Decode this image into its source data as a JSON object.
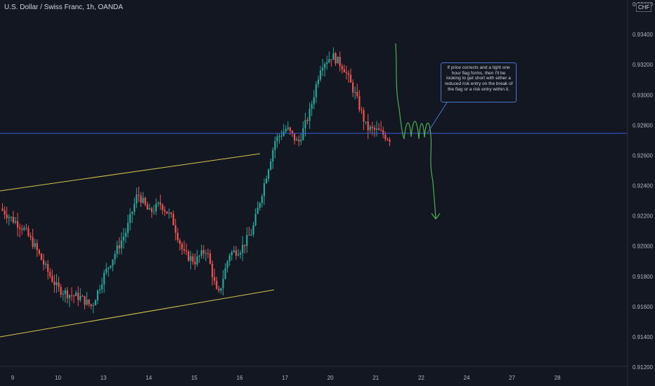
{
  "header": {
    "symbol_title": "U.S. Dollar / Swiss Franc, 1h, OANDA",
    "currency_badge": "CHF"
  },
  "annotation": {
    "text": "If price corrects and a tight one hour flag forms, then I'll be looking to get short with either a reduced risk entry on the break of the flag or a risk entry within it."
  },
  "colors": {
    "background": "#131722",
    "up": "#26a69a",
    "down": "#ef5350",
    "channel": "#d5c74a",
    "level": "#3b5bdb",
    "projection": "#4caf50",
    "note_border": "#4a74c9"
  },
  "chart_data": {
    "type": "candlestick",
    "title": "U.S. Dollar / Swiss Franc, 1h, OANDA",
    "ylim": [
      0.912,
      0.936
    ],
    "yticks": [
      "0.93600",
      "0.93400",
      "0.93200",
      "0.93000",
      "0.92800",
      "0.92600",
      "0.92400",
      "0.92200",
      "0.92000",
      "0.91800",
      "0.91600",
      "0.91400",
      "0.91200"
    ],
    "xticks": [
      "9",
      "10",
      "13",
      "14",
      "15",
      "16",
      "17",
      "20",
      "21",
      "22",
      "24",
      "27",
      "28"
    ],
    "horizontal_level": 0.9275,
    "close_path": [
      [
        "9",
        0.9225
      ],
      [
        "9",
        0.9218
      ],
      [
        "9",
        0.9212
      ],
      [
        "9",
        0.92
      ],
      [
        "9",
        0.9185
      ],
      [
        "10",
        0.9172
      ],
      [
        "10",
        0.9168
      ],
      [
        "10",
        0.9166
      ],
      [
        "10",
        0.916
      ],
      [
        "13",
        0.918
      ],
      [
        "13",
        0.9195
      ],
      [
        "13",
        0.921
      ],
      [
        "13",
        0.9235
      ],
      [
        "14",
        0.9222
      ],
      [
        "14",
        0.9228
      ],
      [
        "14",
        0.9218
      ],
      [
        "14",
        0.9195
      ],
      [
        "15",
        0.919
      ],
      [
        "15",
        0.9198
      ],
      [
        "15",
        0.9166
      ],
      [
        "16",
        0.9195
      ],
      [
        "16",
        0.9198
      ],
      [
        "16",
        0.921
      ],
      [
        "16",
        0.924
      ],
      [
        "17",
        0.927
      ],
      [
        "17",
        0.9278
      ],
      [
        "17",
        0.9268
      ],
      [
        "17",
        0.9288
      ],
      [
        "20",
        0.932
      ],
      [
        "20",
        0.9326
      ],
      [
        "20",
        0.9318
      ],
      [
        "20",
        0.93
      ],
      [
        "21",
        0.9278
      ],
      [
        "21",
        0.9276
      ],
      [
        "21",
        0.9271
      ]
    ]
  }
}
